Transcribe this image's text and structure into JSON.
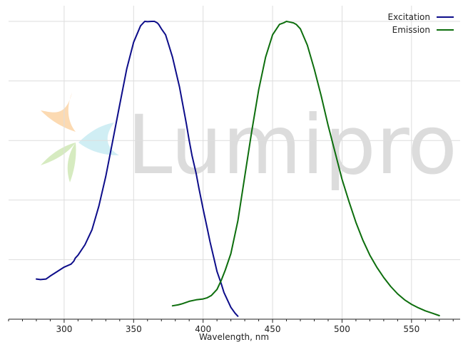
{
  "watermark": {
    "text": "Lumiprobe",
    "colors": {
      "orange": "#fbd3a4",
      "cyan": "#c8ebf2",
      "green": "#cfe8b5",
      "text": "#dcdcdc"
    }
  },
  "chart_data": {
    "type": "line",
    "title": "",
    "xlabel": "Wavelength, nm",
    "ylabel": "",
    "xlim": [
      260,
      585
    ],
    "ylim": [
      0,
      1.05
    ],
    "xticks": [
      300,
      350,
      400,
      450,
      500,
      550
    ],
    "ytick_gridlines": [
      0.2,
      0.4,
      0.6,
      0.8,
      1.0
    ],
    "y_tick_labels_shown": false,
    "grid": true,
    "legend": "top-right",
    "series": [
      {
        "name": "Excitation",
        "color": "#0d0d8a",
        "x": [
          280,
          283,
          287,
          290,
          295,
          300,
          305,
          307,
          308,
          310,
          315,
          320,
          325,
          330,
          335,
          340,
          345,
          350,
          355,
          358,
          360,
          363,
          365,
          367,
          368,
          370,
          373,
          375,
          378,
          380,
          383,
          385,
          387,
          388,
          390,
          392,
          395,
          397,
          400,
          403,
          405,
          408,
          410,
          413,
          415,
          418,
          420,
          423,
          425
        ],
        "values": [
          0.135,
          0.133,
          0.135,
          0.145,
          0.16,
          0.175,
          0.185,
          0.195,
          0.205,
          0.215,
          0.25,
          0.3,
          0.38,
          0.48,
          0.6,
          0.72,
          0.84,
          0.93,
          0.985,
          1.0,
          0.999,
          1.0,
          1.0,
          0.995,
          0.99,
          0.975,
          0.955,
          0.925,
          0.88,
          0.84,
          0.78,
          0.73,
          0.68,
          0.655,
          0.6,
          0.55,
          0.49,
          0.44,
          0.37,
          0.305,
          0.26,
          0.2,
          0.16,
          0.12,
          0.09,
          0.06,
          0.04,
          0.02,
          0.01
        ]
      },
      {
        "name": "Emission",
        "color": "#0d6e0d",
        "x": [
          378,
          382,
          385,
          390,
          395,
          400,
          403,
          406,
          410,
          413,
          416,
          420,
          425,
          430,
          435,
          440,
          445,
          450,
          455,
          458,
          460,
          462,
          465,
          467,
          470,
          475,
          480,
          485,
          490,
          495,
          500,
          505,
          510,
          515,
          520,
          525,
          530,
          535,
          540,
          545,
          550,
          555,
          560,
          565,
          570
        ],
        "values": [
          0.045,
          0.048,
          0.052,
          0.06,
          0.065,
          0.068,
          0.072,
          0.08,
          0.1,
          0.13,
          0.165,
          0.22,
          0.33,
          0.48,
          0.63,
          0.77,
          0.88,
          0.955,
          0.99,
          0.995,
          1.0,
          0.998,
          0.995,
          0.99,
          0.975,
          0.92,
          0.84,
          0.75,
          0.65,
          0.56,
          0.47,
          0.395,
          0.325,
          0.265,
          0.215,
          0.175,
          0.14,
          0.11,
          0.085,
          0.065,
          0.05,
          0.038,
          0.028,
          0.02,
          0.012
        ]
      }
    ]
  }
}
